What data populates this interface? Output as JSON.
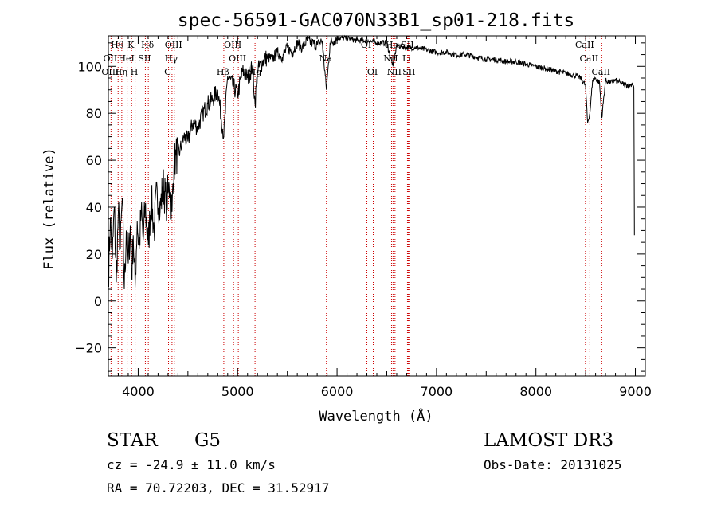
{
  "chart_data": {
    "type": "line",
    "title": "spec-56591-GAC070N33B1_sp01-218.fits",
    "xlabel": "Wavelength (Å)",
    "ylabel": "Flux (relative)",
    "xlim": [
      3700,
      9100
    ],
    "ylim": [
      -32,
      113
    ],
    "xticks": [
      4000,
      5000,
      6000,
      7000,
      8000,
      9000
    ],
    "yticks": [
      -20,
      0,
      20,
      40,
      60,
      80,
      100
    ],
    "grid": false,
    "series": [
      {
        "name": "flux",
        "x": [
          3700,
          3720,
          3740,
          3760,
          3780,
          3800,
          3820,
          3840,
          3860,
          3880,
          3900,
          3920,
          3934,
          3950,
          3969,
          3990,
          4010,
          4030,
          4050,
          4070,
          4102,
          4130,
          4160,
          4190,
          4220,
          4250,
          4280,
          4300,
          4320,
          4340,
          4360,
          4380,
          4420,
          4460,
          4500,
          4550,
          4600,
          4650,
          4700,
          4750,
          4800,
          4861,
          4900,
          4950,
          5000,
          5050,
          5100,
          5150,
          5175,
          5200,
          5250,
          5300,
          5350,
          5400,
          5450,
          5500,
          5550,
          5600,
          5650,
          5700,
          5750,
          5800,
          5850,
          5893,
          5930,
          5970,
          6000,
          6100,
          6200,
          6300,
          6400,
          6500,
          6563,
          6600,
          6700,
          6800,
          6900,
          7000,
          7100,
          7200,
          7300,
          7400,
          7500,
          7600,
          7700,
          7800,
          7900,
          8000,
          8100,
          8200,
          8300,
          8400,
          8450,
          8498,
          8520,
          8542,
          8570,
          8600,
          8640,
          8662,
          8700,
          8750,
          8800,
          8850,
          8900,
          8950,
          8970,
          8985,
          8990
        ],
        "y": [
          10,
          35,
          18,
          40,
          8,
          38,
          22,
          44,
          5,
          30,
          16,
          32,
          10,
          28,
          6,
          34,
          22,
          38,
          26,
          40,
          24,
          44,
          30,
          48,
          38,
          50,
          42,
          46,
          50,
          38,
          58,
          62,
          64,
          70,
          68,
          76,
          74,
          80,
          84,
          86,
          90,
          70,
          96,
          92,
          88,
          98,
          95,
          100,
          84,
          98,
          102,
          104,
          103,
          106,
          104,
          108,
          106,
          110,
          108,
          111,
          110,
          109,
          111,
          90,
          110,
          111,
          112,
          112,
          111,
          111,
          110,
          110,
          100,
          109,
          108,
          108,
          107,
          106,
          106,
          105,
          105,
          104,
          103,
          103,
          102,
          102,
          101,
          100,
          99,
          98,
          97,
          96,
          95,
          92,
          76,
          80,
          94,
          95,
          93,
          78,
          94,
          93,
          94,
          93,
          92,
          92,
          93,
          91,
          28
        ]
      }
    ],
    "line_markers": [
      {
        "label": "Hθ",
        "wave": 3798,
        "row": 1
      },
      {
        "label": "OII",
        "wave": 3727,
        "row": 2
      },
      {
        "label": "OIII",
        "wave": 3727,
        "row": 3
      },
      {
        "label": "Hη",
        "wave": 3835,
        "row": 3
      },
      {
        "label": "HeI",
        "wave": 3889,
        "row": 2
      },
      {
        "label": "K",
        "wave": 3934,
        "row": 1
      },
      {
        "label": "H",
        "wave": 3969,
        "row": 3
      },
      {
        "label": "SII",
        "wave": 4072,
        "row": 2
      },
      {
        "label": "Hδ",
        "wave": 4102,
        "row": 1
      },
      {
        "label": "OIII",
        "wave": 4363,
        "row": 1
      },
      {
        "label": "Hγ",
        "wave": 4340,
        "row": 2
      },
      {
        "label": "G",
        "wave": 4305,
        "row": 3
      },
      {
        "label": "Hβ",
        "wave": 4861,
        "row": 3
      },
      {
        "label": "OIII",
        "wave": 4959,
        "row": 1
      },
      {
        "label": "OIII",
        "wave": 5007,
        "row": 2
      },
      {
        "label": "Mg",
        "wave": 5175,
        "row": 3
      },
      {
        "label": "Na",
        "wave": 5893,
        "row": 2
      },
      {
        "label": "OI",
        "wave": 6300,
        "row": 1
      },
      {
        "label": "OI",
        "wave": 6364,
        "row": 3
      },
      {
        "label": "NII",
        "wave": 6548,
        "row": 2
      },
      {
        "label": "Hα",
        "wave": 6563,
        "row": 1
      },
      {
        "label": "NII",
        "wave": 6583,
        "row": 3
      },
      {
        "label": "Li",
        "wave": 6708,
        "row": 2
      },
      {
        "label": "SII",
        "wave": 6716,
        "row": 1
      },
      {
        "label": "SII",
        "wave": 6731,
        "row": 3
      },
      {
        "label": "CaII",
        "wave": 8498,
        "row": 1
      },
      {
        "label": "CaII",
        "wave": 8542,
        "row": 2
      },
      {
        "label": "CaII",
        "wave": 8662,
        "row": 3
      }
    ]
  },
  "info": {
    "class_type": "STAR",
    "subclass": "G5",
    "survey": "LAMOST DR3",
    "redshift": "cz = -24.9 ± 11.0 km/s",
    "obs_date": "Obs-Date: 20131025",
    "coords": "RA =  70.72203, DEC =  31.52917"
  },
  "colors": {
    "line": "#000000",
    "marker": "#cc0000",
    "axis": "#000000"
  }
}
